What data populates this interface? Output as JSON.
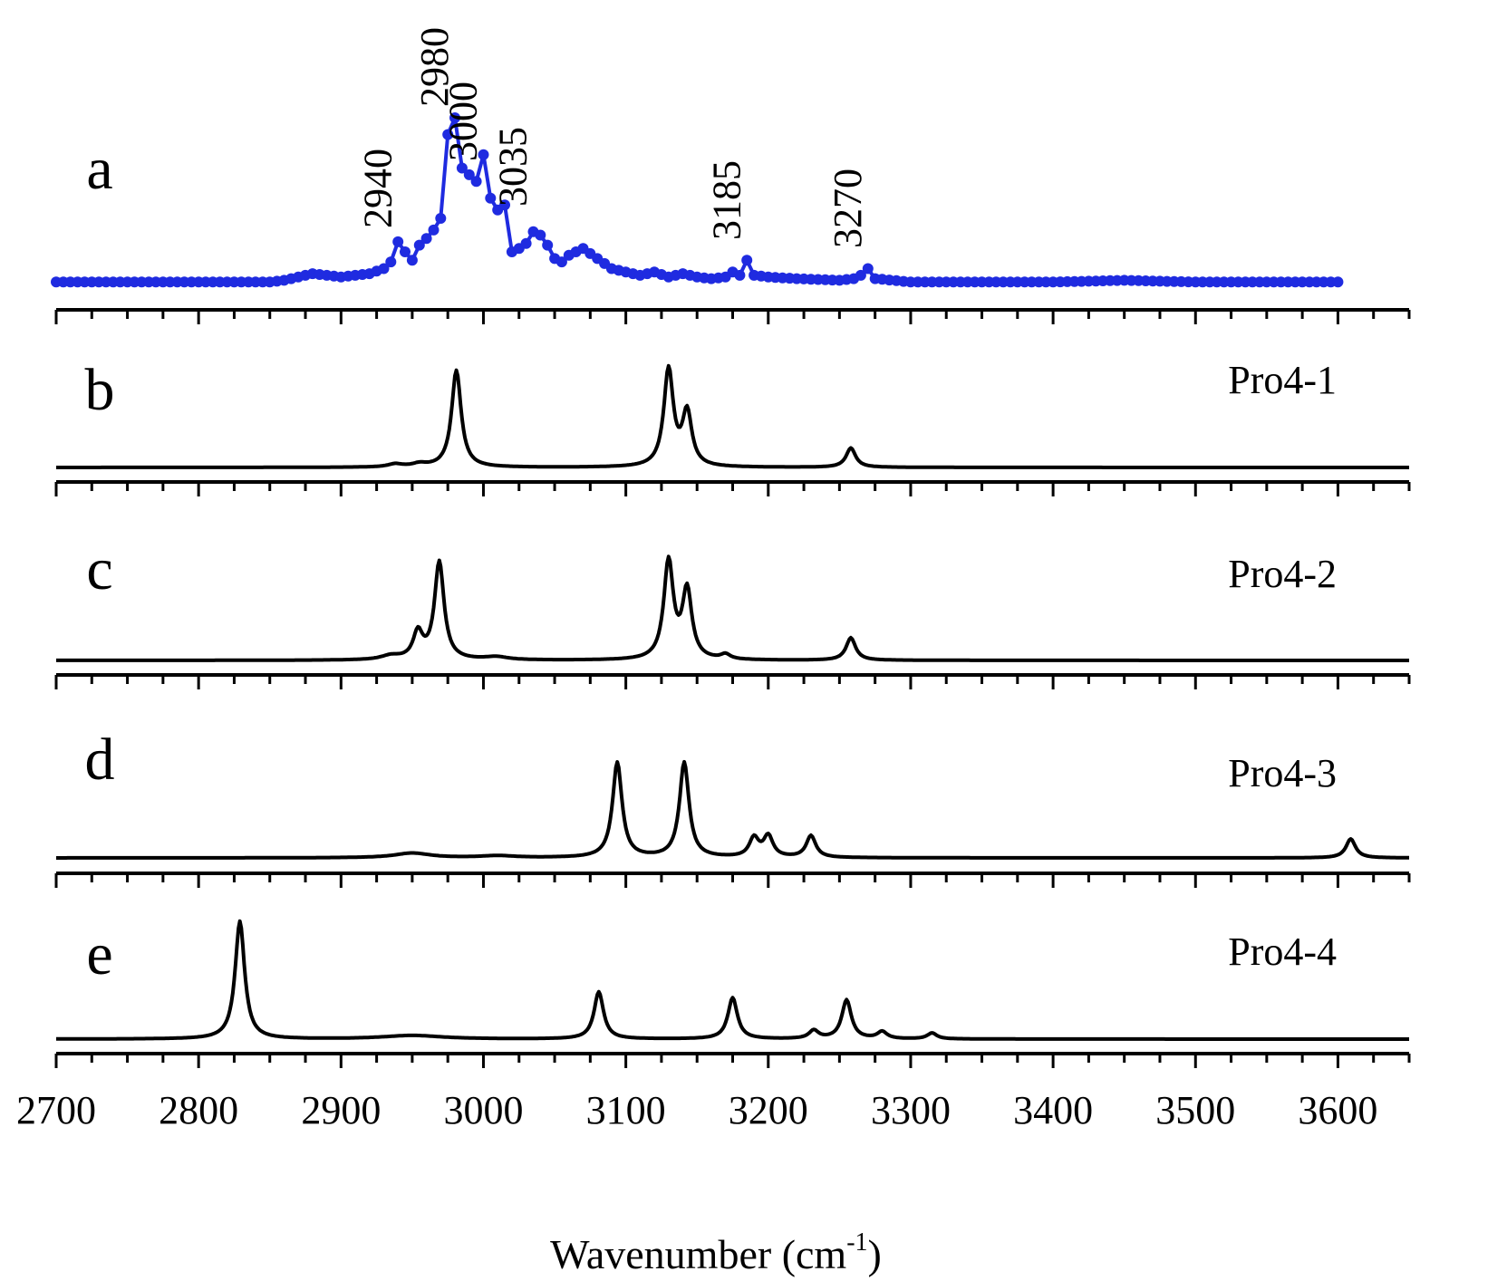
{
  "chart_data": {
    "type": "line",
    "xlabel": "Wavenumber (cm",
    "xlabel_superscript": "-1",
    "xlabel_close": ")",
    "xlim": [
      2700,
      3650
    ],
    "x_major_ticks": [
      2700,
      2800,
      2900,
      3000,
      3100,
      3200,
      3300,
      3400,
      3500,
      3600
    ],
    "x_tick_labels": [
      "2700",
      "2800",
      "2900",
      "3000",
      "3100",
      "3200",
      "3300",
      "3400",
      "3500",
      "3600"
    ],
    "x_minor_step": 25,
    "grid": false,
    "colors": {
      "experimental": "#1f2be0",
      "calculated": "#000000"
    },
    "panels": [
      {
        "letter": "a",
        "name": "",
        "style": "line-with-markers",
        "color": "#1f2be0",
        "peak_labels": [
          "2940",
          "2980",
          "3000",
          "3035",
          "3185",
          "3270"
        ],
        "peak_positions": [
          2940,
          2980,
          3000,
          3035,
          3185,
          3270
        ],
        "points": [
          [
            2700,
            0.02
          ],
          [
            2750,
            0.02
          ],
          [
            2800,
            0.02
          ],
          [
            2850,
            0.02
          ],
          [
            2860,
            0.03
          ],
          [
            2870,
            0.05
          ],
          [
            2880,
            0.07
          ],
          [
            2890,
            0.06
          ],
          [
            2900,
            0.05
          ],
          [
            2910,
            0.06
          ],
          [
            2920,
            0.07
          ],
          [
            2930,
            0.1
          ],
          [
            2935,
            0.14
          ],
          [
            2940,
            0.26
          ],
          [
            2945,
            0.2
          ],
          [
            2950,
            0.15
          ],
          [
            2955,
            0.24
          ],
          [
            2960,
            0.28
          ],
          [
            2965,
            0.33
          ],
          [
            2970,
            0.4
          ],
          [
            2975,
            0.9
          ],
          [
            2980,
            1.0
          ],
          [
            2985,
            0.7
          ],
          [
            2990,
            0.66
          ],
          [
            2995,
            0.62
          ],
          [
            3000,
            0.78
          ],
          [
            3005,
            0.52
          ],
          [
            3010,
            0.45
          ],
          [
            3015,
            0.48
          ],
          [
            3020,
            0.2
          ],
          [
            3025,
            0.22
          ],
          [
            3030,
            0.25
          ],
          [
            3035,
            0.32
          ],
          [
            3040,
            0.3
          ],
          [
            3045,
            0.24
          ],
          [
            3050,
            0.16
          ],
          [
            3055,
            0.14
          ],
          [
            3060,
            0.18
          ],
          [
            3070,
            0.22
          ],
          [
            3080,
            0.16
          ],
          [
            3090,
            0.1
          ],
          [
            3100,
            0.08
          ],
          [
            3110,
            0.06
          ],
          [
            3120,
            0.08
          ],
          [
            3130,
            0.05
          ],
          [
            3140,
            0.07
          ],
          [
            3150,
            0.05
          ],
          [
            3160,
            0.04
          ],
          [
            3170,
            0.05
          ],
          [
            3175,
            0.08
          ],
          [
            3180,
            0.06
          ],
          [
            3185,
            0.15
          ],
          [
            3190,
            0.06
          ],
          [
            3200,
            0.05
          ],
          [
            3220,
            0.04
          ],
          [
            3250,
            0.03
          ],
          [
            3260,
            0.04
          ],
          [
            3265,
            0.06
          ],
          [
            3270,
            0.1
          ],
          [
            3275,
            0.04
          ],
          [
            3300,
            0.02
          ],
          [
            3400,
            0.02
          ],
          [
            3450,
            0.03
          ],
          [
            3500,
            0.02
          ],
          [
            3550,
            0.02
          ],
          [
            3600,
            0.02
          ]
        ]
      },
      {
        "letter": "b",
        "name": "Pro4-1",
        "style": "line",
        "color": "#000000",
        "peaks": [
          [
            2938,
            0.03,
            6
          ],
          [
            2955,
            0.03,
            6
          ],
          [
            2981,
            1.0,
            4
          ],
          [
            3130,
            1.0,
            4
          ],
          [
            3143,
            0.55,
            4
          ],
          [
            3258,
            0.2,
            4
          ]
        ]
      },
      {
        "letter": "c",
        "name": "Pro4-2",
        "style": "line",
        "color": "#000000",
        "peaks": [
          [
            2935,
            0.04,
            8
          ],
          [
            2954,
            0.27,
            4
          ],
          [
            2969,
            1.0,
            4
          ],
          [
            3009,
            0.03,
            10
          ],
          [
            3130,
            1.0,
            4
          ],
          [
            3143,
            0.7,
            4
          ],
          [
            3170,
            0.05,
            4
          ],
          [
            3258,
            0.23,
            4
          ]
        ]
      },
      {
        "letter": "d",
        "name": "Pro4-3",
        "style": "line",
        "color": "#000000",
        "peaks": [
          [
            2950,
            0.05,
            15
          ],
          [
            3010,
            0.02,
            15
          ],
          [
            3094,
            1.0,
            4
          ],
          [
            3141,
            1.0,
            4
          ],
          [
            3190,
            0.2,
            4
          ],
          [
            3200,
            0.22,
            4
          ],
          [
            3230,
            0.23,
            4
          ],
          [
            3609,
            0.2,
            4
          ]
        ]
      },
      {
        "letter": "e",
        "name": "Pro4-4",
        "style": "line",
        "color": "#000000",
        "peaks": [
          [
            2829,
            1.0,
            4
          ],
          [
            2950,
            0.03,
            25
          ],
          [
            3081,
            0.4,
            4
          ],
          [
            3175,
            0.35,
            4
          ],
          [
            3232,
            0.07,
            4
          ],
          [
            3255,
            0.33,
            4
          ],
          [
            3280,
            0.06,
            4
          ],
          [
            3315,
            0.05,
            4
          ]
        ]
      }
    ]
  }
}
